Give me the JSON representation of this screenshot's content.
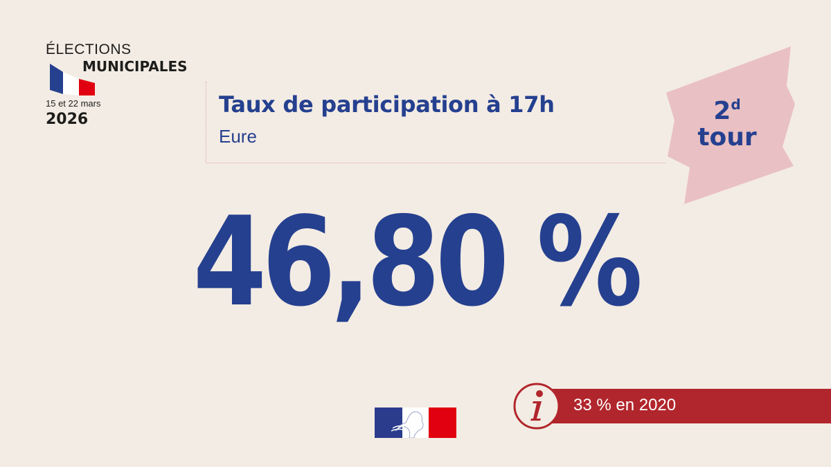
{
  "logo": {
    "line1": "ÉLECTIONS",
    "line2": "MUNICIPALES",
    "dates": "15 et 22 mars",
    "year": "2026"
  },
  "header": {
    "title": "Taux de participation à 17h",
    "subtitle": "Eure"
  },
  "tour": {
    "number": "2",
    "suffix": "d",
    "word": "tour"
  },
  "main": {
    "value": "46,80 %"
  },
  "info": {
    "text": "33 % en 2020",
    "icon": "info-icon"
  },
  "colors": {
    "background": "#f3ece4",
    "blue": "#25408f",
    "red": "#b1262c",
    "pink": "#e9c0c3"
  }
}
